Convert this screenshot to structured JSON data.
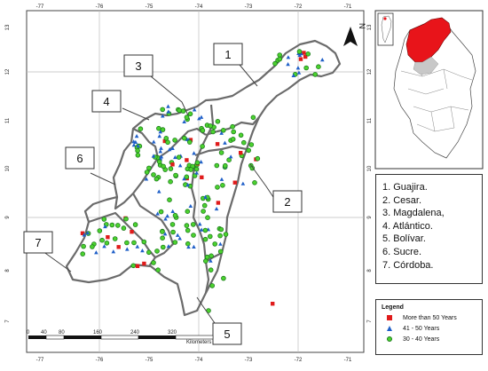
{
  "colors": {
    "over_50": "#e01b1b",
    "range_41_50": "#1f5fc8",
    "range_30_40": "#4cd22f",
    "highlight_region": "#e8141a",
    "grid": "#bdbdbd",
    "outline": "#6b6b6b"
  },
  "ticks": {
    "lon": [
      "-77",
      "-76",
      "-75",
      "-74",
      "-73",
      "-72",
      "-71"
    ],
    "lat": [
      "13",
      "12",
      "11",
      "10",
      "9",
      "8",
      "7"
    ]
  },
  "callouts": [
    "1",
    "2",
    "3",
    "4",
    "5",
    "6",
    "7"
  ],
  "north_label": "N",
  "regions": [
    "1. Guajira.",
    "2. Cesar.",
    "3. Magdalena,",
    "4. Atlántico.",
    "5. Bolívar.",
    "6. Sucre.",
    "7. Córdoba."
  ],
  "legend": {
    "title": "Legend",
    "items": [
      "More than 50 Years",
      "41 - 50 Years",
      "30 - 40 Years"
    ]
  },
  "scalebar": {
    "labels": [
      "0",
      "40",
      "80",
      "160",
      "240",
      "320"
    ],
    "unit": "Kilometers"
  }
}
